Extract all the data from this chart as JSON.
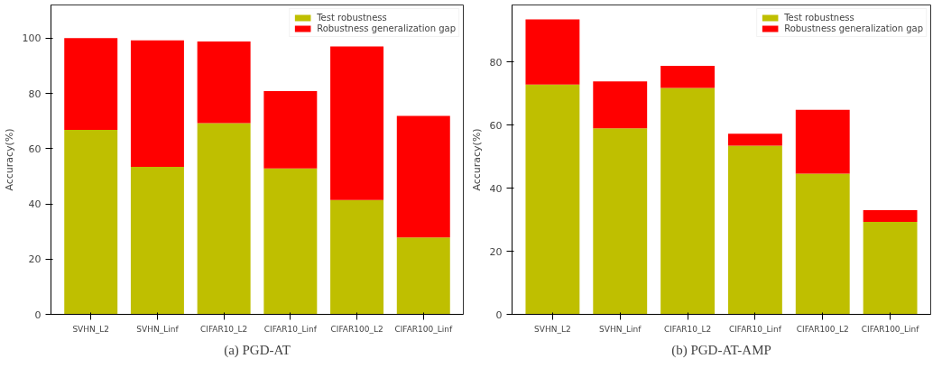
{
  "chart_data": [
    {
      "type": "bar",
      "stacked": true,
      "title": "(a) PGD-AT",
      "ylabel": "Accuracy(%)",
      "categories": [
        "SVHN_L2",
        "SVHN_Linf",
        "CIFAR10_L2",
        "CIFAR10_Linf",
        "CIFAR100_L2",
        "CIFAR100_Linf"
      ],
      "series": [
        {
          "name": "Test robustness",
          "color": "#bfbf00",
          "values": [
            66.8,
            53.4,
            69.2,
            52.8,
            41.4,
            27.8
          ]
        },
        {
          "name": "Robustness generalization gap",
          "color": "#ff0000",
          "values": [
            33.2,
            45.8,
            29.6,
            28.0,
            55.6,
            44.0
          ]
        }
      ],
      "ylim": [
        0,
        112
      ],
      "yticks": [
        0,
        20,
        40,
        60,
        80,
        100
      ],
      "grid": false,
      "legend": "top right"
    },
    {
      "type": "bar",
      "stacked": true,
      "title": "(b) PGD-AT-AMP",
      "ylabel": "Accuracy(%)",
      "categories": [
        "SVHN_L2",
        "SVHN_Linf",
        "CIFAR10_L2",
        "CIFAR10_Linf",
        "CIFAR100_L2",
        "CIFAR100_Linf"
      ],
      "series": [
        {
          "name": "Test robustness",
          "color": "#bfbf00",
          "values": [
            72.8,
            58.9,
            71.7,
            53.4,
            44.6,
            29.3
          ]
        },
        {
          "name": "Robustness generalization gap",
          "color": "#ff0000",
          "values": [
            20.6,
            14.9,
            7.0,
            3.8,
            20.2,
            3.7
          ]
        }
      ],
      "ylim": [
        0,
        98
      ],
      "yticks": [
        0,
        20,
        40,
        60,
        80
      ],
      "grid": false,
      "legend": "top right"
    }
  ]
}
